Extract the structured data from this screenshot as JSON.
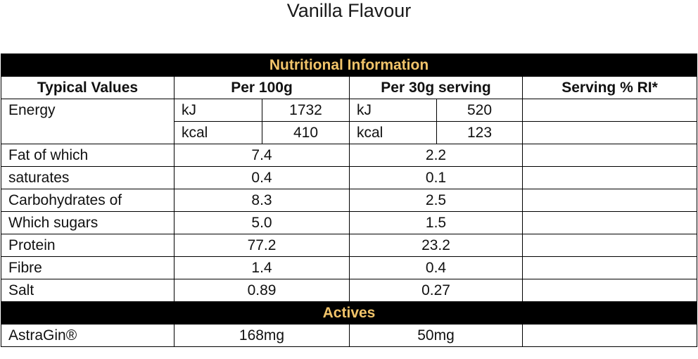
{
  "title": "Vanilla Flavour",
  "table": {
    "section_nutrition": "Nutritional Information",
    "headers": {
      "typical": "Typical Values",
      "per100": "Per 100g",
      "per30": "Per 30g serving",
      "ri": "Serving % RI*"
    },
    "energy": {
      "label": "Energy",
      "kj_unit": "kJ",
      "kj_100": "1732",
      "kj_30": "520",
      "kcal_unit": "kcal",
      "kcal_100": "410",
      "kcal_30": "123"
    },
    "rows": [
      {
        "label": "Fat of which",
        "per100": "7.4",
        "per30": "2.2"
      },
      {
        "label": "saturates",
        "per100": "0.4",
        "per30": "0.1"
      },
      {
        "label": "Carbohydrates of",
        "per100": "8.3",
        "per30": "2.5"
      },
      {
        "label": "Which sugars",
        "per100": "5.0",
        "per30": "1.5"
      },
      {
        "label": "Protein",
        "per100": "77.2",
        "per30": "23.2"
      },
      {
        "label": "Fibre",
        "per100": "1.4",
        "per30": "0.4"
      },
      {
        "label": "Salt",
        "per100": "0.89",
        "per30": "0.27"
      }
    ],
    "section_actives": "Actives",
    "actives": [
      {
        "label": "AstraGin®",
        "per100": "168mg",
        "per30": "50mg"
      }
    ]
  },
  "colors": {
    "band_background": "#000000",
    "band_text": "#f2c46a"
  }
}
